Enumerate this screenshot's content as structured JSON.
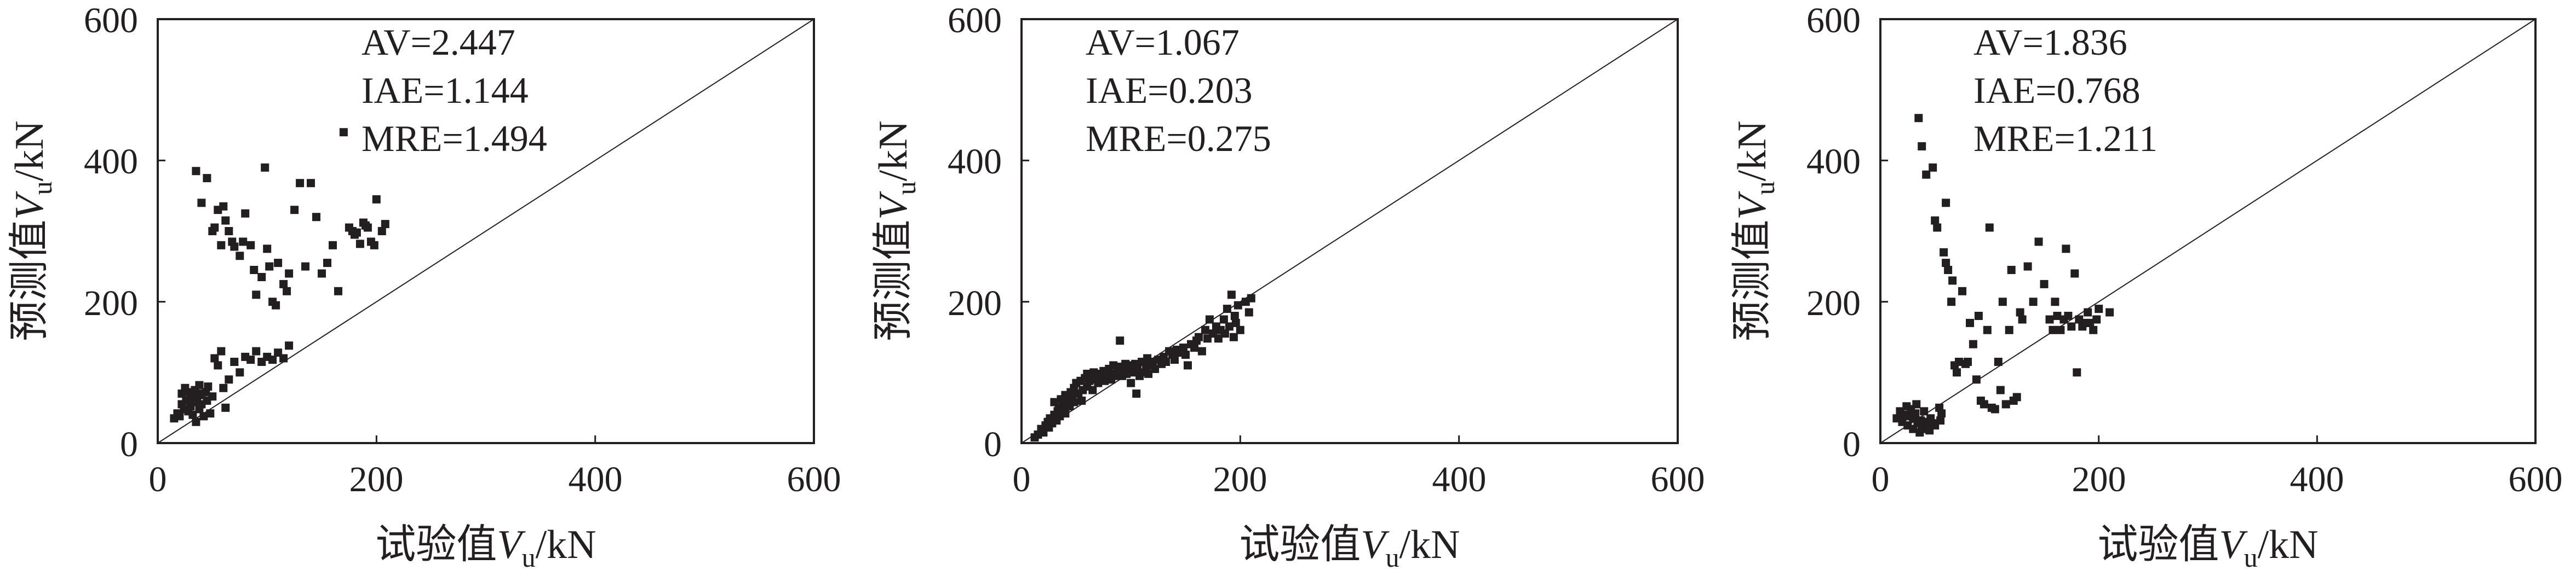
{
  "colors": {
    "ink": "#231f20",
    "background": "#ffffff"
  },
  "chart_data": [
    {
      "type": "scatter",
      "xlabel": "试验值",
      "ylabel": "预测值",
      "xlim": [
        0,
        600
      ],
      "ylim": [
        0,
        600
      ],
      "xticks": [
        "0",
        "200",
        "400",
        "600"
      ],
      "yticks": [
        "0",
        "200",
        "400",
        "600"
      ],
      "grid": false,
      "reference_line": "y = x",
      "stats": [
        "AV=2.447",
        "IAE=1.144",
        "MRE=1.494"
      ],
      "points": [
        [
          15,
          35
        ],
        [
          18,
          42
        ],
        [
          20,
          38
        ],
        [
          22,
          55
        ],
        [
          22,
          70
        ],
        [
          24,
          48
        ],
        [
          25,
          78
        ],
        [
          26,
          60
        ],
        [
          28,
          45
        ],
        [
          28,
          72
        ],
        [
          30,
          52
        ],
        [
          30,
          65
        ],
        [
          32,
          40
        ],
        [
          33,
          58
        ],
        [
          34,
          75
        ],
        [
          35,
          30
        ],
        [
          36,
          62
        ],
        [
          37,
          70
        ],
        [
          38,
          48
        ],
        [
          38,
          82
        ],
        [
          40,
          55
        ],
        [
          40,
          68
        ],
        [
          42,
          38
        ],
        [
          44,
          72
        ],
        [
          45,
          60
        ],
        [
          46,
          80
        ],
        [
          48,
          42
        ],
        [
          50,
          66
        ],
        [
          52,
          120
        ],
        [
          55,
          110
        ],
        [
          58,
          130
        ],
        [
          60,
          78
        ],
        [
          62,
          50
        ],
        [
          65,
          90
        ],
        [
          70,
          115
        ],
        [
          75,
          100
        ],
        [
          80,
          122
        ],
        [
          85,
          118
        ],
        [
          90,
          130
        ],
        [
          95,
          115
        ],
        [
          100,
          122
        ],
        [
          105,
          118
        ],
        [
          110,
          128
        ],
        [
          115,
          120
        ],
        [
          120,
          138
        ],
        [
          35,
          385
        ],
        [
          40,
          340
        ],
        [
          45,
          375
        ],
        [
          50,
          300
        ],
        [
          52,
          305
        ],
        [
          55,
          330
        ],
        [
          58,
          280
        ],
        [
          60,
          335
        ],
        [
          62,
          315
        ],
        [
          65,
          300
        ],
        [
          68,
          285
        ],
        [
          70,
          278
        ],
        [
          75,
          265
        ],
        [
          78,
          285
        ],
        [
          80,
          325
        ],
        [
          85,
          280
        ],
        [
          88,
          245
        ],
        [
          90,
          210
        ],
        [
          95,
          235
        ],
        [
          98,
          390
        ],
        [
          100,
          275
        ],
        [
          102,
          250
        ],
        [
          105,
          200
        ],
        [
          108,
          195
        ],
        [
          110,
          255
        ],
        [
          115,
          225
        ],
        [
          118,
          215
        ],
        [
          120,
          240
        ],
        [
          125,
          330
        ],
        [
          130,
          368
        ],
        [
          135,
          250
        ],
        [
          140,
          368
        ],
        [
          145,
          320
        ],
        [
          150,
          240
        ],
        [
          155,
          255
        ],
        [
          160,
          280
        ],
        [
          165,
          215
        ],
        [
          170,
          440
        ],
        [
          175,
          305
        ],
        [
          178,
          300
        ],
        [
          180,
          295
        ],
        [
          182,
          298
        ],
        [
          185,
          282
        ],
        [
          188,
          312
        ],
        [
          190,
          308
        ],
        [
          192,
          305
        ],
        [
          195,
          285
        ],
        [
          198,
          280
        ],
        [
          200,
          345
        ],
        [
          205,
          300
        ],
        [
          208,
          310
        ]
      ]
    },
    {
      "type": "scatter",
      "xlabel": "试验值",
      "ylabel": "预测值",
      "xlim": [
        0,
        600
      ],
      "ylim": [
        0,
        600
      ],
      "xticks": [
        "0",
        "200",
        "400",
        "600"
      ],
      "yticks": [
        "0",
        "200",
        "400",
        "600"
      ],
      "grid": false,
      "reference_line": "y = x",
      "stats": [
        "AV=1.067",
        "IAE=0.203",
        "MRE=0.275"
      ],
      "points": [
        [
          12,
          8
        ],
        [
          15,
          12
        ],
        [
          18,
          20
        ],
        [
          20,
          15
        ],
        [
          22,
          25
        ],
        [
          24,
          30
        ],
        [
          25,
          22
        ],
        [
          26,
          35
        ],
        [
          28,
          28
        ],
        [
          30,
          40
        ],
        [
          30,
          58
        ],
        [
          32,
          32
        ],
        [
          33,
          45
        ],
        [
          34,
          50
        ],
        [
          35,
          38
        ],
        [
          36,
          62
        ],
        [
          37,
          48
        ],
        [
          38,
          55
        ],
        [
          40,
          42
        ],
        [
          40,
          68
        ],
        [
          42,
          60
        ],
        [
          44,
          52
        ],
        [
          45,
          72
        ],
        [
          46,
          65
        ],
        [
          48,
          58
        ],
        [
          48,
          78
        ],
        [
          50,
          85
        ],
        [
          52,
          70
        ],
        [
          54,
          88
        ],
        [
          55,
          60
        ],
        [
          56,
          75
        ],
        [
          58,
          92
        ],
        [
          60,
          80
        ],
        [
          60,
          98
        ],
        [
          62,
          88
        ],
        [
          64,
          95
        ],
        [
          65,
          75
        ],
        [
          66,
          100
        ],
        [
          68,
          90
        ],
        [
          70,
          85
        ],
        [
          72,
          98
        ],
        [
          74,
          92
        ],
        [
          75,
          102
        ],
        [
          76,
          88
        ],
        [
          78,
          95
        ],
        [
          80,
          105
        ],
        [
          82,
          90
        ],
        [
          84,
          110
        ],
        [
          85,
          98
        ],
        [
          86,
          95
        ],
        [
          88,
          100
        ],
        [
          90,
          108
        ],
        [
          90,
          145
        ],
        [
          92,
          95
        ],
        [
          94,
          102
        ],
        [
          95,
          112
        ],
        [
          96,
          98
        ],
        [
          98,
          105
        ],
        [
          100,
          85
        ],
        [
          100,
          110
        ],
        [
          102,
          100
        ],
        [
          104,
          112
        ],
        [
          105,
          70
        ],
        [
          106,
          105
        ],
        [
          108,
          95
        ],
        [
          110,
          115
        ],
        [
          112,
          100
        ],
        [
          114,
          108
        ],
        [
          115,
          120
        ],
        [
          116,
          98
        ],
        [
          118,
          110
        ],
        [
          120,
          115
        ],
        [
          122,
          105
        ],
        [
          125,
          118
        ],
        [
          128,
          112
        ],
        [
          130,
          122
        ],
        [
          132,
          115
        ],
        [
          135,
          130
        ],
        [
          138,
          125
        ],
        [
          140,
          118
        ],
        [
          142,
          132
        ],
        [
          145,
          128
        ],
        [
          148,
          135
        ],
        [
          150,
          125
        ],
        [
          152,
          110
        ],
        [
          155,
          140
        ],
        [
          158,
          135
        ],
        [
          160,
          145
        ],
        [
          162,
          150
        ],
        [
          165,
          130
        ],
        [
          168,
          160
        ],
        [
          170,
          148
        ],
        [
          172,
          175
        ],
        [
          175,
          155
        ],
        [
          178,
          165
        ],
        [
          180,
          148
        ],
        [
          182,
          160
        ],
        [
          185,
          175
        ],
        [
          186,
          155
        ],
        [
          188,
          190
        ],
        [
          190,
          165
        ],
        [
          192,
          210
        ],
        [
          194,
          150
        ],
        [
          195,
          180
        ],
        [
          196,
          170
        ],
        [
          198,
          195
        ],
        [
          200,
          160
        ],
        [
          205,
          200
        ],
        [
          208,
          185
        ],
        [
          210,
          205
        ]
      ]
    },
    {
      "type": "scatter",
      "xlabel": "试验值",
      "ylabel": "预测值",
      "xlim": [
        0,
        600
      ],
      "ylim": [
        0,
        600
      ],
      "xticks": [
        "0",
        "200",
        "400",
        "600"
      ],
      "yticks": [
        "0",
        "200",
        "400",
        "600"
      ],
      "grid": false,
      "reference_line": "y = x",
      "stats": [
        "AV=1.836",
        "IAE=0.768",
        "MRE=1.211"
      ],
      "points": [
        [
          15,
          35
        ],
        [
          18,
          45
        ],
        [
          20,
          30
        ],
        [
          22,
          40
        ],
        [
          24,
          52
        ],
        [
          25,
          25
        ],
        [
          26,
          38
        ],
        [
          28,
          48
        ],
        [
          30,
          20
        ],
        [
          30,
          35
        ],
        [
          32,
          42
        ],
        [
          33,
          55
        ],
        [
          34,
          28
        ],
        [
          35,
          460
        ],
        [
          36,
          15
        ],
        [
          37,
          32
        ],
        [
          38,
          420
        ],
        [
          38,
          25
        ],
        [
          40,
          45
        ],
        [
          40,
          20
        ],
        [
          42,
          380
        ],
        [
          42,
          30
        ],
        [
          44,
          22
        ],
        [
          45,
          18
        ],
        [
          46,
          35
        ],
        [
          48,
          28
        ],
        [
          48,
          390
        ],
        [
          50,
          25
        ],
        [
          50,
          315
        ],
        [
          52,
          305
        ],
        [
          54,
          50
        ],
        [
          55,
          32
        ],
        [
          56,
          42
        ],
        [
          58,
          270
        ],
        [
          60,
          255
        ],
        [
          60,
          340
        ],
        [
          62,
          245
        ],
        [
          65,
          200
        ],
        [
          66,
          230
        ],
        [
          68,
          110
        ],
        [
          70,
          100
        ],
        [
          72,
          115
        ],
        [
          75,
          215
        ],
        [
          78,
          112
        ],
        [
          80,
          115
        ],
        [
          82,
          170
        ],
        [
          85,
          140
        ],
        [
          88,
          90
        ],
        [
          90,
          180
        ],
        [
          92,
          60
        ],
        [
          95,
          55
        ],
        [
          98,
          160
        ],
        [
          100,
          305
        ],
        [
          102,
          50
        ],
        [
          105,
          48
        ],
        [
          108,
          115
        ],
        [
          110,
          75
        ],
        [
          112,
          200
        ],
        [
          115,
          55
        ],
        [
          118,
          160
        ],
        [
          120,
          245
        ],
        [
          122,
          60
        ],
        [
          125,
          65
        ],
        [
          128,
          185
        ],
        [
          130,
          175
        ],
        [
          135,
          250
        ],
        [
          140,
          200
        ],
        [
          145,
          285
        ],
        [
          150,
          225
        ],
        [
          155,
          175
        ],
        [
          158,
          160
        ],
        [
          160,
          200
        ],
        [
          162,
          180
        ],
        [
          165,
          160
        ],
        [
          168,
          175
        ],
        [
          170,
          275
        ],
        [
          172,
          180
        ],
        [
          175,
          165
        ],
        [
          178,
          240
        ],
        [
          180,
          100
        ],
        [
          182,
          175
        ],
        [
          185,
          165
        ],
        [
          188,
          170
        ],
        [
          190,
          185
        ],
        [
          192,
          170
        ],
        [
          195,
          160
        ],
        [
          198,
          175
        ],
        [
          200,
          190
        ],
        [
          210,
          185
        ]
      ]
    }
  ]
}
